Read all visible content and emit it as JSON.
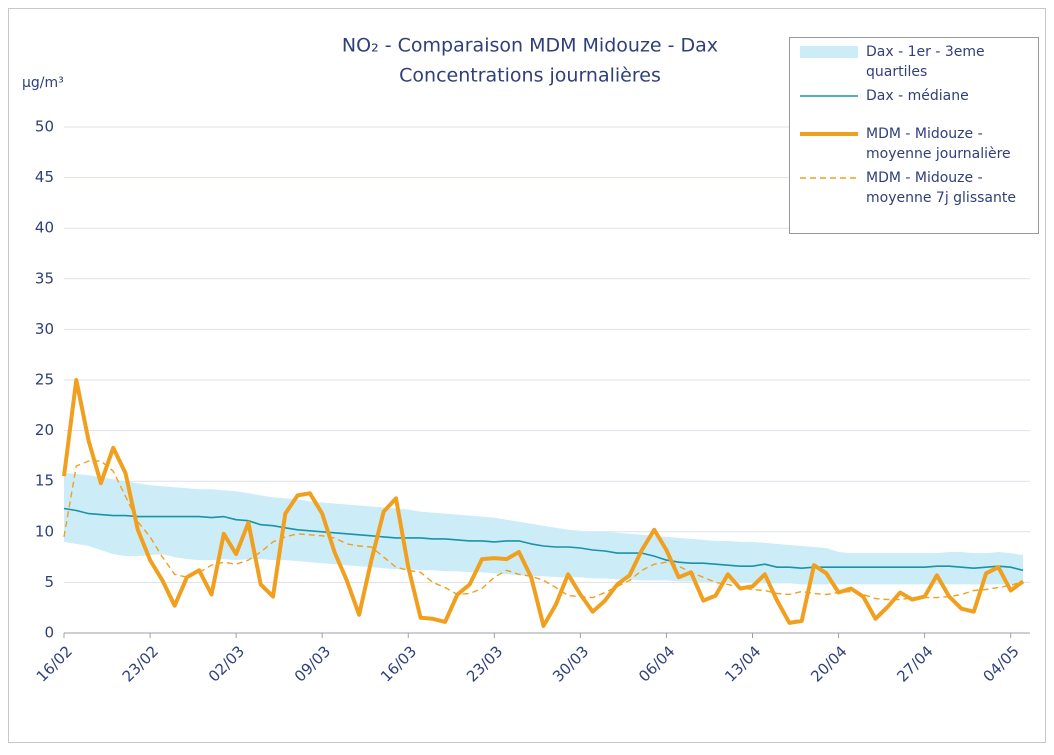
{
  "chart_data": {
    "type": "line",
    "title": "NO₂ - Comparaison MDM Midouze - Dax",
    "subtitle": "Concentrations journalières",
    "y_label": "µg/m³",
    "categories": [
      "16/02",
      null,
      null,
      null,
      null,
      null,
      null,
      "23/02",
      null,
      null,
      null,
      null,
      null,
      null,
      "02/03",
      null,
      null,
      null,
      null,
      null,
      null,
      "09/03",
      null,
      null,
      null,
      null,
      null,
      null,
      "16/03",
      null,
      null,
      null,
      null,
      null,
      null,
      "23/03",
      null,
      null,
      null,
      null,
      null,
      null,
      "30/03",
      null,
      null,
      null,
      null,
      null,
      null,
      "06/04",
      null,
      null,
      null,
      null,
      null,
      null,
      "13/04",
      null,
      null,
      null,
      null,
      null,
      null,
      "20/04",
      null,
      null,
      null,
      null,
      null,
      null,
      "27/04",
      null,
      null,
      null,
      null,
      null,
      null,
      "04/05",
      null
    ],
    "ylim": [
      0,
      50
    ],
    "yticks": [
      0,
      5,
      10,
      15,
      20,
      25,
      30,
      35,
      40,
      45,
      50
    ],
    "grid": true,
    "series": [
      {
        "name": "Dax - 1er - 3eme quartiles",
        "kind": "band",
        "color": "#ccedf8",
        "low": [
          9,
          8.8,
          8.6,
          8.2,
          7.8,
          7.6,
          7.6,
          7.7,
          7.8,
          7.5,
          7.3,
          7.2,
          7.2,
          7.3,
          7.2,
          7.3,
          7.3,
          7.2,
          7.2,
          7.1,
          7,
          6.9,
          6.8,
          6.7,
          6.6,
          6.5,
          6.4,
          6.3,
          6.3,
          6.2,
          6.2,
          6.1,
          6.1,
          6,
          6,
          5.9,
          5.8,
          5.7,
          5.6,
          5.6,
          5.5,
          5.5,
          5.5,
          5.4,
          5.4,
          5.3,
          5.3,
          5.2,
          5.2,
          5.2,
          5.1,
          5.1,
          5,
          5,
          5,
          5,
          4.9,
          4.9,
          4.9,
          4.9,
          4.8,
          4.8,
          4.8,
          4.8,
          4.8,
          4.8,
          4.8,
          4.8,
          4.8,
          4.8,
          4.8,
          4.8,
          4.8,
          4.8,
          4.8,
          4.8,
          4.8,
          4.8,
          4.8
        ],
        "high": [
          15.8,
          15.7,
          15.6,
          15.4,
          15.2,
          15,
          14.8,
          14.6,
          14.5,
          14.4,
          14.3,
          14.2,
          14.2,
          14.1,
          14,
          13.8,
          13.6,
          13.4,
          13.3,
          13.2,
          13,
          12.9,
          12.8,
          12.7,
          12.6,
          12.5,
          12.4,
          12.3,
          12.2,
          12,
          11.9,
          11.8,
          11.7,
          11.6,
          11.5,
          11.4,
          11.2,
          11,
          10.8,
          10.6,
          10.4,
          10.2,
          10.1,
          10,
          10,
          9.9,
          9.8,
          9.7,
          9.6,
          9.5,
          9.4,
          9.3,
          9.2,
          9.1,
          9.1,
          9,
          9,
          8.9,
          8.8,
          8.7,
          8.6,
          8.5,
          8.4,
          8,
          7.9,
          7.9,
          7.9,
          7.9,
          7.9,
          7.9,
          7.9,
          7.9,
          8,
          8,
          7.9,
          7.9,
          8,
          7.9,
          7.7
        ]
      },
      {
        "name": "Dax - médiane",
        "kind": "line",
        "color": "#1a93a8",
        "width": 1.6,
        "values": [
          12.3,
          12.1,
          11.8,
          11.7,
          11.6,
          11.6,
          11.5,
          11.5,
          11.5,
          11.5,
          11.5,
          11.5,
          11.4,
          11.5,
          11.2,
          11.1,
          10.7,
          10.6,
          10.4,
          10.2,
          10.1,
          10,
          9.9,
          9.8,
          9.7,
          9.6,
          9.5,
          9.4,
          9.4,
          9.4,
          9.3,
          9.3,
          9.2,
          9.1,
          9.1,
          9,
          9.1,
          9.1,
          8.8,
          8.6,
          8.5,
          8.5,
          8.4,
          8.2,
          8.1,
          7.9,
          7.9,
          7.9,
          7.6,
          7.2,
          7,
          6.9,
          6.9,
          6.8,
          6.7,
          6.6,
          6.6,
          6.8,
          6.5,
          6.5,
          6.4,
          6.5,
          6.5,
          6.5,
          6.5,
          6.5,
          6.5,
          6.5,
          6.5,
          6.5,
          6.5,
          6.6,
          6.6,
          6.5,
          6.4,
          6.5,
          6.6,
          6.5,
          6.2
        ]
      },
      {
        "name": "MDM - Midouze - moyenne journalière",
        "kind": "line",
        "color": "#f0a01e",
        "width": 4,
        "values": [
          15.5,
          25,
          19,
          14.8,
          18.3,
          15.8,
          10.2,
          7.2,
          5.2,
          2.7,
          5.5,
          6.2,
          3.8,
          9.8,
          7.8,
          10.9,
          4.8,
          3.6,
          11.8,
          13.6,
          13.8,
          11.8,
          8,
          5.2,
          1.8,
          7.2,
          12,
          13.3,
          6.5,
          1.5,
          1.4,
          1.1,
          3.8,
          4.8,
          7.3,
          7.4,
          7.3,
          8,
          5.5,
          0.7,
          2.8,
          5.8,
          3.8,
          2.1,
          3.2,
          4.8,
          5.7,
          8.2,
          10.2,
          8.2,
          5.5,
          6,
          3.2,
          3.7,
          5.8,
          4.4,
          4.6,
          5.8,
          3.2,
          1,
          1.2,
          6.7,
          5.9,
          4,
          4.4,
          3.6,
          1.4,
          2.6,
          4,
          3.3,
          3.6,
          5.7,
          3.6,
          2.4,
          2.1,
          5.9,
          6.5,
          4.2,
          5.1
        ]
      },
      {
        "name": "MDM - Midouze - moyenne 7j glissante",
        "kind": "line",
        "color": "#f0a01e",
        "width": 1.4,
        "dash": true,
        "values": [
          9.5,
          16.5,
          17,
          17,
          16,
          13.5,
          11,
          9.5,
          7.5,
          5.8,
          5.5,
          6,
          6.7,
          7,
          6.8,
          7.2,
          8,
          9,
          9.5,
          9.8,
          9.7,
          9.6,
          9.4,
          8.8,
          8.6,
          8.5,
          7.5,
          6.5,
          6.2,
          6,
          5,
          4.5,
          3.8,
          3.9,
          4.4,
          5.5,
          6.2,
          5.8,
          5.6,
          5.2,
          4.5,
          3.7,
          3.6,
          3.5,
          4,
          4.6,
          5.2,
          6.2,
          6.8,
          7,
          6.6,
          6,
          5.5,
          5,
          4.8,
          4.5,
          4.3,
          4.2,
          3.9,
          3.8,
          4.1,
          3.9,
          3.8,
          4,
          4.1,
          3.8,
          3.4,
          3.3,
          3.3,
          3.5,
          3.5,
          3.5,
          3.6,
          3.8,
          4.2,
          4.3,
          4.5,
          4.7,
          5.1
        ]
      }
    ]
  }
}
